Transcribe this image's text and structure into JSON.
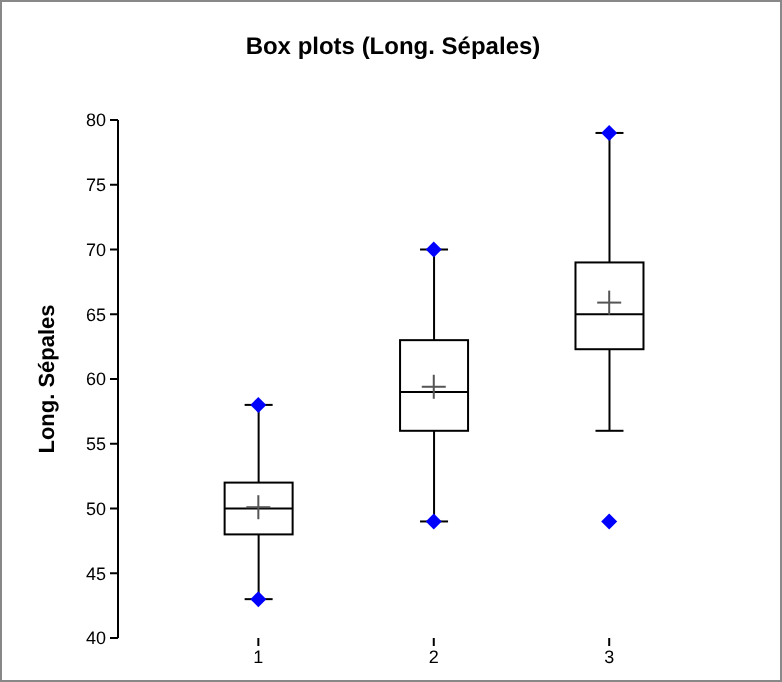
{
  "chart_data": {
    "type": "box",
    "title": "Box plots (Long. Sépales)",
    "ylabel": "Long. Sépales",
    "categories": [
      "1",
      "2",
      "3"
    ],
    "boxes": [
      {
        "low": 43,
        "q1": 48,
        "median": 50,
        "q3": 52,
        "high": 58,
        "mean": 50.1
      },
      {
        "low": 49,
        "q1": 56,
        "median": 59,
        "q3": 63,
        "high": 70,
        "mean": 59.4
      },
      {
        "low": 56,
        "q1": 62.3,
        "median": 65,
        "q3": 69,
        "high": 79,
        "mean": 65.9
      }
    ],
    "series": [
      {
        "type": "scatter",
        "color": "#0000ff",
        "marker": "diamond",
        "x": [
          "1",
          "1",
          "2",
          "2",
          "3",
          "3"
        ],
        "values": [
          43,
          58,
          49,
          70,
          49,
          79
        ]
      }
    ],
    "ylim": [
      40,
      80
    ],
    "yticks": [
      40,
      45,
      50,
      55,
      60,
      65,
      70,
      75,
      80
    ],
    "grid": false,
    "legend": false
  }
}
